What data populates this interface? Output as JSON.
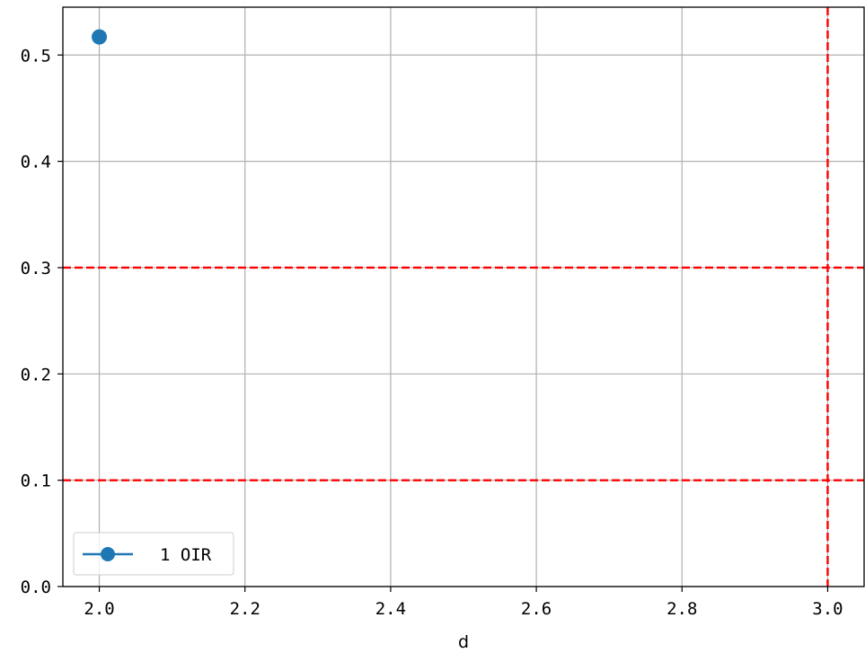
{
  "chart_data": {
    "type": "line",
    "title": "",
    "xlabel": "d",
    "ylabel": "",
    "xlim": [
      1.95,
      3.05
    ],
    "ylim": [
      0.0,
      0.545
    ],
    "xticks": [
      2.0,
      2.2,
      2.4,
      2.6,
      2.8,
      3.0
    ],
    "xtick_labels": [
      "2.0",
      "2.2",
      "2.4",
      "2.6",
      "2.8",
      "3.0"
    ],
    "yticks": [
      0.0,
      0.1,
      0.2,
      0.3,
      0.4,
      0.5
    ],
    "ytick_labels": [
      "0.0",
      "0.1",
      "0.2",
      "0.3",
      "0.4",
      "0.5"
    ],
    "grid": true,
    "legend_position": "lower-left",
    "series": [
      {
        "name": "1 OIR",
        "color": "#1f77b4",
        "marker": "circle",
        "x": [
          2.0
        ],
        "y": [
          0.517
        ]
      }
    ],
    "reference_lines": [
      {
        "orientation": "horizontal",
        "value": 0.3,
        "color": "#ff0000",
        "style": "dashed"
      },
      {
        "orientation": "horizontal",
        "value": 0.1,
        "color": "#ff0000",
        "style": "dashed"
      },
      {
        "orientation": "vertical",
        "value": 3.0,
        "color": "#ff0000",
        "style": "dashed"
      }
    ]
  }
}
